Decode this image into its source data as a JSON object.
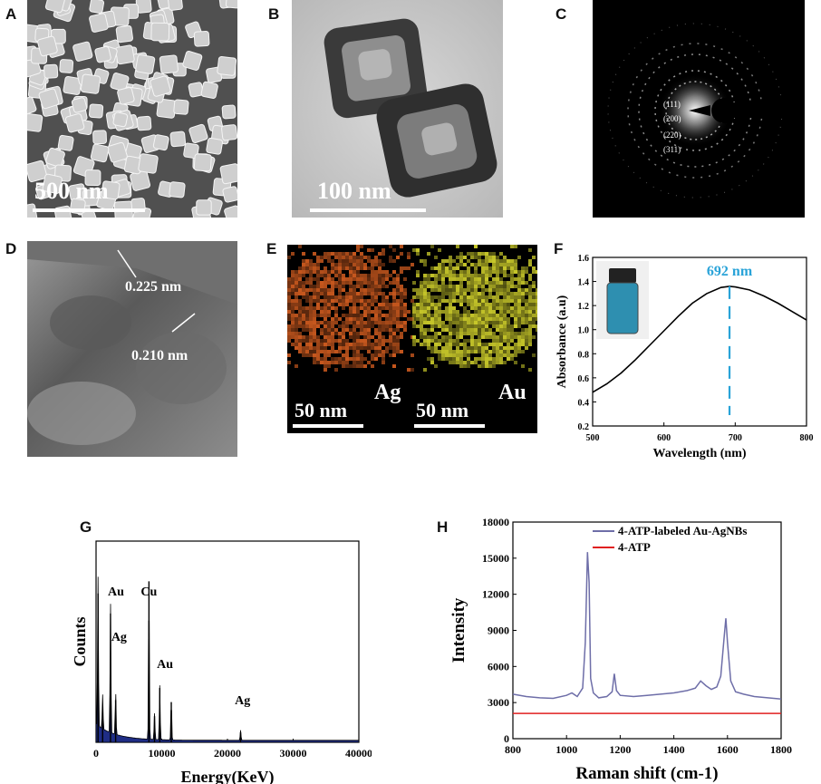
{
  "panels": {
    "A": {
      "letter": "A",
      "scale_label": "500 nm"
    },
    "B": {
      "letter": "B",
      "scale_label": "100 nm"
    },
    "C": {
      "letter": "C",
      "rings": [
        "(111)",
        "(200)",
        "(220)",
        "(311)"
      ]
    },
    "D": {
      "letter": "D",
      "spacings": [
        "0.225 nm",
        "0.210 nm"
      ]
    },
    "E": {
      "letter": "E",
      "maps": [
        {
          "element": "Ag",
          "scale_label": "50 nm",
          "color": "#c8581e"
        },
        {
          "element": "Au",
          "scale_label": "50 nm",
          "color": "#c8c82a"
        }
      ]
    },
    "F": {
      "letter": "F"
    },
    "G": {
      "letter": "G"
    },
    "H": {
      "letter": "H"
    }
  },
  "chart_data": [
    {
      "id": "F",
      "type": "line",
      "xlabel": "Wavelength (nm)",
      "ylabel": "Absorbance (a.u)",
      "xlim": [
        500,
        800
      ],
      "ylim": [
        0.2,
        1.6
      ],
      "xticks": [
        500,
        600,
        700,
        800
      ],
      "yticks": [
        0.2,
        0.4,
        0.6,
        0.8,
        1.0,
        1.2,
        1.4,
        1.6
      ],
      "x": [
        500,
        520,
        540,
        560,
        580,
        600,
        620,
        640,
        660,
        680,
        692,
        700,
        720,
        740,
        760,
        780,
        800
      ],
      "y": [
        0.48,
        0.55,
        0.64,
        0.75,
        0.87,
        0.99,
        1.11,
        1.22,
        1.3,
        1.35,
        1.36,
        1.355,
        1.33,
        1.28,
        1.22,
        1.15,
        1.08
      ],
      "annotation": {
        "label": "692 nm",
        "x": 692,
        "color": "#29a3d8"
      },
      "line_color": "#000000"
    },
    {
      "id": "G",
      "type": "area",
      "xlabel": "Energy(KeV)",
      "ylabel": "Counts",
      "xlim": [
        0,
        40000
      ],
      "xticks": [
        0,
        10000,
        20000,
        30000,
        40000
      ],
      "peaks": [
        {
          "x": 300,
          "y": 0.74
        },
        {
          "x": 1000,
          "y": 0.17
        },
        {
          "x": 2200,
          "y": 0.64
        },
        {
          "x": 2980,
          "y": 0.21
        },
        {
          "x": 8050,
          "y": 0.8
        },
        {
          "x": 8900,
          "y": 0.13
        },
        {
          "x": 9700,
          "y": 0.27
        },
        {
          "x": 11450,
          "y": 0.2
        },
        {
          "x": 22000,
          "y": 0.05
        }
      ],
      "annotations": [
        {
          "label": "Au",
          "x": 2200
        },
        {
          "label": "Ag",
          "x": 3500
        },
        {
          "label": "Cu",
          "x": 8050
        },
        {
          "label": "Au",
          "x": 10500
        },
        {
          "label": "Ag",
          "x": 22300
        }
      ],
      "fill_color": "#1f2d85"
    },
    {
      "id": "H",
      "type": "line",
      "xlabel": "Raman shift (cm-1)",
      "ylabel": "Intensity",
      "xlim": [
        800,
        1800
      ],
      "ylim": [
        0,
        18000
      ],
      "xticks": [
        800,
        1000,
        1200,
        1400,
        1600,
        1800
      ],
      "yticks": [
        0,
        3000,
        6000,
        9000,
        12000,
        15000,
        18000
      ],
      "series": [
        {
          "name": "4-ATP-labeled Au-AgNBs",
          "color": "#6e6ea8",
          "x": [
            800,
            850,
            900,
            950,
            1000,
            1020,
            1040,
            1060,
            1070,
            1078,
            1084,
            1090,
            1100,
            1120,
            1150,
            1170,
            1178,
            1186,
            1200,
            1250,
            1300,
            1350,
            1400,
            1450,
            1480,
            1500,
            1520,
            1540,
            1560,
            1575,
            1588,
            1594,
            1600,
            1612,
            1630,
            1660,
            1700,
            1750,
            1800
          ],
          "y": [
            3700,
            3500,
            3400,
            3350,
            3600,
            3800,
            3500,
            4200,
            8000,
            15500,
            13000,
            5000,
            3800,
            3400,
            3500,
            3900,
            5400,
            4000,
            3600,
            3500,
            3600,
            3700,
            3800,
            4000,
            4200,
            4800,
            4400,
            4100,
            4300,
            5200,
            8500,
            10000,
            8000,
            4800,
            3900,
            3700,
            3500,
            3400,
            3300
          ]
        },
        {
          "name": "4-ATP",
          "color": "#e02020",
          "x": [
            800,
            1800
          ],
          "y": [
            2100,
            2100
          ]
        }
      ]
    }
  ]
}
